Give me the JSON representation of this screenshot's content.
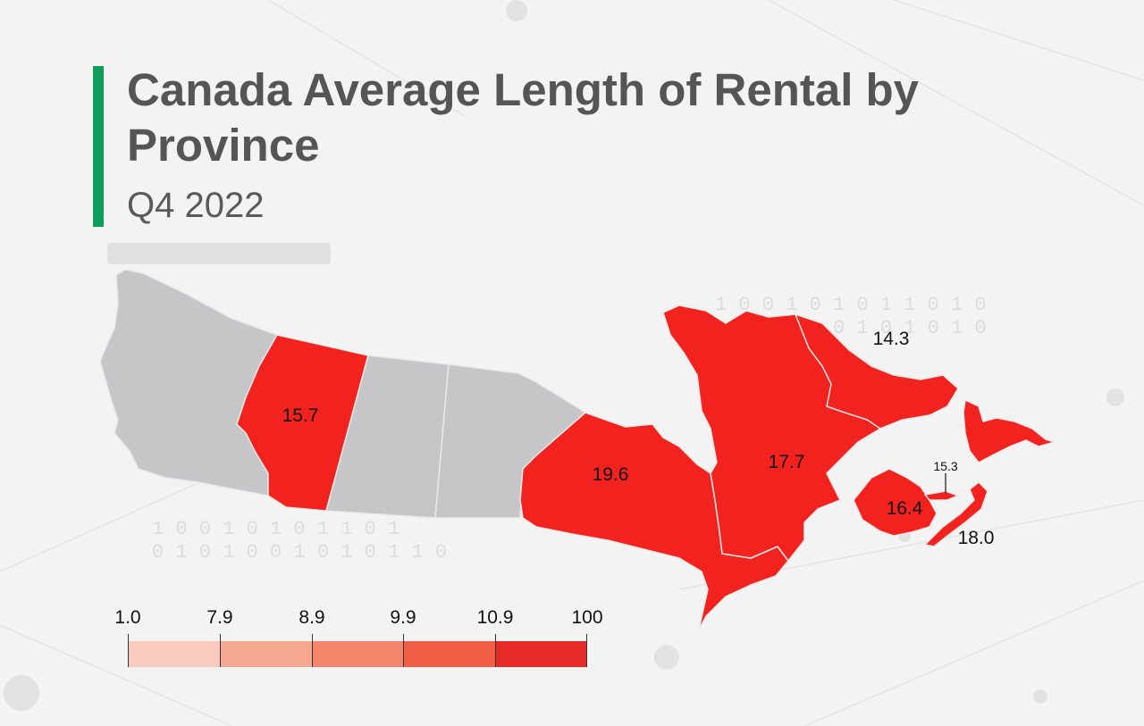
{
  "header": {
    "title": "Canada Average Length of Rental by Province",
    "subtitle": "Q4 2022"
  },
  "colors": {
    "accent": "#0d9f5a",
    "no_data": "#c6c6c8",
    "highlight": "#f2221e",
    "border": "#e9e9e9"
  },
  "background_binary_text": [
    "1 0 0 1 0 1 0 1 1 0 1",
    "0 1 0 1 0 0 1 0 1 0 1 1 0",
    "1 0 0 1 0 1 0 1 1 0 1 0",
    "0 1 0 1 0 0 1 0 1 0 1 0"
  ],
  "provinces": [
    {
      "name": "British Columbia",
      "value": null
    },
    {
      "name": "Alberta",
      "value": "15.7"
    },
    {
      "name": "Saskatchewan",
      "value": null
    },
    {
      "name": "Manitoba",
      "value": null
    },
    {
      "name": "Ontario",
      "value": "19.6"
    },
    {
      "name": "Quebec",
      "value": "17.7"
    },
    {
      "name": "Newfoundland and Labrador",
      "value": "14.3"
    },
    {
      "name": "New Brunswick",
      "value": "16.4"
    },
    {
      "name": "Prince Edward Island",
      "value": "15.3"
    },
    {
      "name": "Nova Scotia",
      "value": "18.0"
    }
  ],
  "legend": {
    "ticks": [
      "1.0",
      "7.9",
      "8.9",
      "9.9",
      "10.9",
      "100"
    ],
    "colors": [
      "#f9cbbd",
      "#f6a78f",
      "#f3866a",
      "#f05d45",
      "#e52a28"
    ]
  }
}
